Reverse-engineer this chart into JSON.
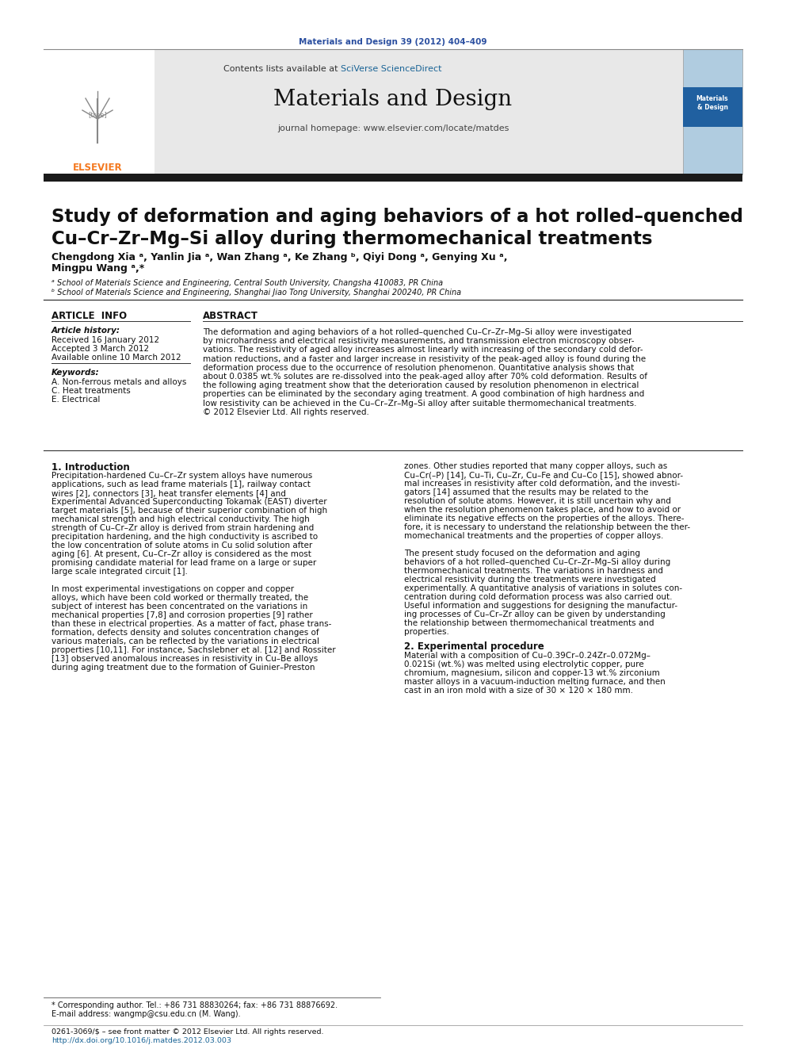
{
  "page_bg": "#ffffff",
  "top_journal_ref": "Materials and Design 39 (2012) 404–409",
  "top_journal_ref_color": "#2b4fa0",
  "header_bg": "#e8e8e8",
  "header_sciverse_color": "#1a6496",
  "header_journal_name": "Materials and Design",
  "header_homepage_text": "journal homepage: www.elsevier.com/locate/matdes",
  "title_text": "Study of deformation and aging behaviors of a hot rolled–quenched\nCu–Cr–Zr–Mg–Si alloy during thermomechanical treatments",
  "authors_line1": "Chengdong Xia ᵃ, Yanlin Jia ᵃ, Wan Zhang ᵃ, Ke Zhang ᵇ, Qiyi Dong ᵃ, Genying Xu ᵃ,",
  "authors_line2": "Mingpu Wang ᵃ,*",
  "affil_a": "ᵃ School of Materials Science and Engineering, Central South University, Changsha 410083, PR China",
  "affil_b": "ᵇ School of Materials Science and Engineering, Shanghai Jiao Tong University, Shanghai 200240, PR China",
  "article_info_header": "ARTICLE  INFO",
  "article_history_label": "Article history:",
  "received": "Received 16 January 2012",
  "accepted": "Accepted 3 March 2012",
  "available": "Available online 10 March 2012",
  "keywords_label": "Keywords:",
  "kw1": "A. Non-ferrous metals and alloys",
  "kw2": "C. Heat treatments",
  "kw3": "E. Electrical",
  "abstract_header": "ABSTRACT",
  "abstract_text": "The deformation and aging behaviors of a hot rolled–quenched Cu–Cr–Zr–Mg–Si alloy were investigated\nby microhardness and electrical resistivity measurements, and transmission electron microscopy obser-\nvations. The resistivity of aged alloy increases almost linearly with increasing of the secondary cold defor-\nmation reductions, and a faster and larger increase in resistivity of the peak-aged alloy is found during the\ndeformation process due to the occurrence of resolution phenomenon. Quantitative analysis shows that\nabout 0.0385 wt.% solutes are re-dissolved into the peak-aged alloy after 70% cold deformation. Results of\nthe following aging treatment show that the deterioration caused by resolution phenomenon in electrical\nproperties can be eliminated by the secondary aging treatment. A good combination of high hardness and\nlow resistivity can be achieved in the Cu–Cr–Zr–Mg–Si alloy after suitable thermomechanical treatments.\n© 2012 Elsevier Ltd. All rights reserved.",
  "section1_title": "1. Introduction",
  "section1_col1_lines": [
    "Precipitation-hardened Cu–Cr–Zr system alloys have numerous",
    "applications, such as lead frame materials [1], railway contact",
    "wires [2], connectors [3], heat transfer elements [4] and",
    "Experimental Advanced Superconducting Tokamak (EAST) diverter",
    "target materials [5], because of their superior combination of high",
    "mechanical strength and high electrical conductivity. The high",
    "strength of Cu–Cr–Zr alloy is derived from strain hardening and",
    "precipitation hardening, and the high conductivity is ascribed to",
    "the low concentration of solute atoms in Cu solid solution after",
    "aging [6]. At present, Cu–Cr–Zr alloy is considered as the most",
    "promising candidate material for lead frame on a large or super",
    "large scale integrated circuit [1].",
    "",
    "In most experimental investigations on copper and copper",
    "alloys, which have been cold worked or thermally treated, the",
    "subject of interest has been concentrated on the variations in",
    "mechanical properties [7,8] and corrosion properties [9] rather",
    "than these in electrical properties. As a matter of fact, phase trans-",
    "formation, defects density and solutes concentration changes of",
    "various materials, can be reflected by the variations in electrical",
    "properties [10,11]. For instance, Sachslebner et al. [12] and Rossiter",
    "[13] observed anomalous increases in resistivity in Cu–Be alloys",
    "during aging treatment due to the formation of Guinier–Preston"
  ],
  "section1_col2_lines": [
    "zones. Other studies reported that many copper alloys, such as",
    "Cu–Cr(–P) [14], Cu–Ti, Cu–Zr, Cu–Fe and Cu–Co [15], showed abnor-",
    "mal increases in resistivity after cold deformation, and the investi-",
    "gators [14] assumed that the results may be related to the",
    "resolution of solute atoms. However, it is still uncertain why and",
    "when the resolution phenomenon takes place, and how to avoid or",
    "eliminate its negative effects on the properties of the alloys. There-",
    "fore, it is necessary to understand the relationship between the ther-",
    "momechanical treatments and the properties of copper alloys.",
    "",
    "The present study focused on the deformation and aging",
    "behaviors of a hot rolled–quenched Cu–Cr–Zr–Mg–Si alloy during",
    "thermomechanical treatments. The variations in hardness and",
    "electrical resistivity during the treatments were investigated",
    "experimentally. A quantitative analysis of variations in solutes con-",
    "centration during cold deformation process was also carried out.",
    "Useful information and suggestions for designing the manufactur-",
    "ing processes of Cu–Cr–Zr alloy can be given by understanding",
    "the relationship between thermomechanical treatments and",
    "properties."
  ],
  "section2_title": "2. Experimental procedure",
  "section2_lines": [
    "Material with a composition of Cu–0.39Cr–0.24Zr–0.072Mg–",
    "0.021Si (wt.%) was melted using electrolytic copper, pure",
    "chromium, magnesium, silicon and copper-13 wt.% zirconium",
    "master alloys in a vacuum-induction melting furnace, and then",
    "cast in an iron mold with a size of 30 × 120 × 180 mm."
  ],
  "footer_corresp": "* Corresponding author. Tel.: +86 731 88830264; fax: +86 731 88876692.",
  "footer_email": "E-mail address: wangmp@csu.edu.cn (M. Wang).",
  "footer_issn": "0261-3069/$ – see front matter © 2012 Elsevier Ltd. All rights reserved.",
  "footer_doi": "http://dx.doi.org/10.1016/j.matdes.2012.03.003",
  "footer_doi_color": "#1a6496",
  "elsevier_color": "#f47920",
  "thick_divider_color": "#1a1a1a"
}
